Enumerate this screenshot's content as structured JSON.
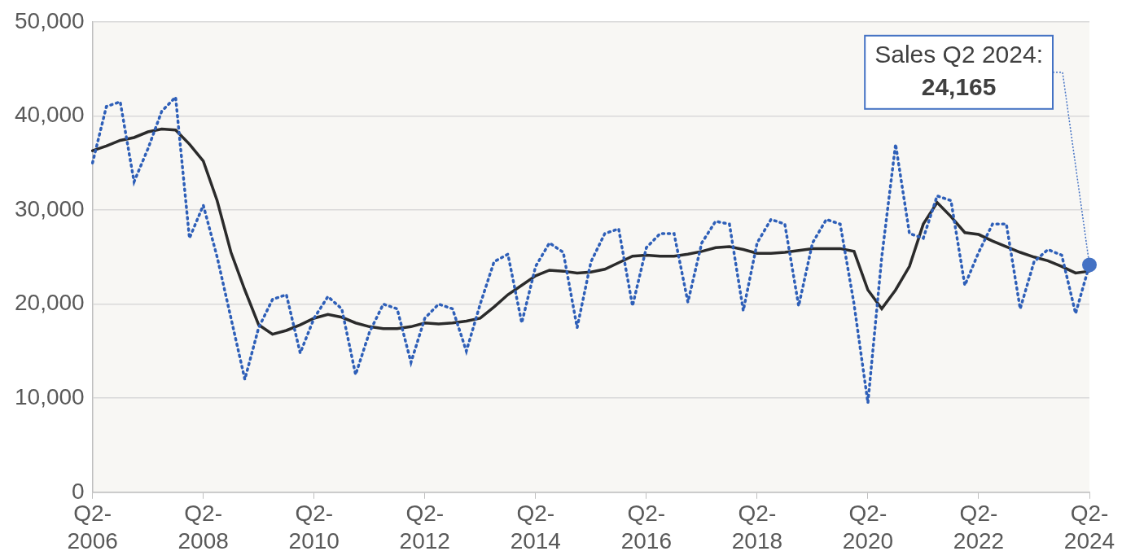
{
  "chart_data": {
    "type": "line",
    "categories": [
      "Q2-\n2006",
      null,
      null,
      null,
      null,
      null,
      null,
      null,
      "Q2-\n2008",
      null,
      null,
      null,
      null,
      null,
      null,
      null,
      "Q2-\n2010",
      null,
      null,
      null,
      null,
      null,
      null,
      null,
      "Q2-\n2012",
      null,
      null,
      null,
      null,
      null,
      null,
      null,
      "Q2-\n2014",
      null,
      null,
      null,
      null,
      null,
      null,
      null,
      "Q2-\n2016",
      null,
      null,
      null,
      null,
      null,
      null,
      null,
      "Q2-\n2018",
      null,
      null,
      null,
      null,
      null,
      null,
      null,
      "Q2-\n2020",
      null,
      null,
      null,
      null,
      null,
      null,
      null,
      "Q2-\n2022",
      null,
      null,
      null,
      null,
      null,
      null,
      null,
      "Q2-\n2024"
    ],
    "series": [
      {
        "color": "#2e5fb8",
        "line_style": "dotted",
        "values": [
          35000,
          41000,
          41500,
          33000,
          36500,
          40500,
          42000,
          27000,
          30500,
          25000,
          18500,
          12000,
          17500,
          20500,
          21000,
          14800,
          18500,
          20800,
          19500,
          12500,
          17000,
          20000,
          19500,
          13800,
          18500,
          20000,
          19500,
          15000,
          20000,
          24500,
          25300,
          18000,
          24000,
          26500,
          25500,
          17500,
          24500,
          27500,
          28000,
          19800,
          26000,
          27500,
          27500,
          20200,
          26500,
          28800,
          28500,
          19300,
          26500,
          29000,
          28500,
          19800,
          26500,
          29000,
          28500,
          20000,
          9500,
          25000,
          37000,
          27500,
          27000,
          31500,
          31000,
          22000,
          25500,
          28500,
          28500,
          19500,
          24500,
          25800,
          25200,
          19000,
          24165
        ]
      },
      {
        "color": "#2b2b2b",
        "line_style": "solid",
        "values": [
          36300,
          36800,
          37400,
          37700,
          38300,
          38600,
          38500,
          37000,
          35200,
          31000,
          25500,
          21500,
          17800,
          16800,
          17200,
          17800,
          18500,
          18900,
          18600,
          18000,
          17600,
          17400,
          17400,
          17600,
          18000,
          17900,
          18000,
          18200,
          18500,
          19700,
          21000,
          22000,
          23000,
          23600,
          23500,
          23300,
          23400,
          23700,
          24400,
          25100,
          25200,
          25100,
          25100,
          25300,
          25600,
          26000,
          26100,
          25800,
          25400,
          25400,
          25500,
          25700,
          25900,
          25900,
          25900,
          25600,
          21500,
          19500,
          21500,
          24000,
          28500,
          30800,
          29300,
          27600,
          27400,
          26700,
          26100,
          25500,
          25000,
          24600,
          24000,
          23300,
          23500
        ]
      }
    ],
    "ylim": [
      0,
      50000
    ],
    "yticks": [
      0,
      {
        "value": 10000,
        "label": "10,000"
      },
      {
        "value": 20000,
        "label": "20,000"
      },
      {
        "value": 30000,
        "label": "30,000"
      },
      {
        "value": 40000,
        "label": "40,000"
      },
      {
        "value": 50000,
        "label": "50,000"
      }
    ],
    "grid": true,
    "annotations": [
      {
        "text": "Sales Q2 2024:",
        "value_label": "24,165",
        "value": 24165,
        "x": "Q2-\n2024",
        "color": "#4472c4"
      }
    ]
  }
}
